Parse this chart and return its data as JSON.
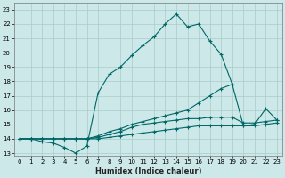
{
  "xlabel": "Humidex (Indice chaleur)",
  "bg_color": "#cce8e8",
  "grid_color": "#aacccc",
  "line_color": "#006666",
  "xlim": [
    -0.5,
    23.5
  ],
  "ylim": [
    12.8,
    23.5
  ],
  "xticks": [
    0,
    1,
    2,
    3,
    4,
    5,
    6,
    7,
    8,
    9,
    10,
    11,
    12,
    13,
    14,
    15,
    16,
    17,
    18,
    19,
    20,
    21,
    22,
    23
  ],
  "yticks": [
    13,
    14,
    15,
    16,
    17,
    18,
    19,
    20,
    21,
    22,
    23
  ],
  "s0x": [
    0,
    1,
    2,
    3,
    4,
    5,
    6,
    7,
    8,
    9,
    10,
    11,
    12,
    13,
    14,
    15,
    16,
    17,
    18,
    19
  ],
  "s0y": [
    14.0,
    14.0,
    13.8,
    13.7,
    13.4,
    13.0,
    13.5,
    17.2,
    18.5,
    19.0,
    19.8,
    20.5,
    21.1,
    22.0,
    22.7,
    21.8,
    22.0,
    20.8,
    19.9,
    17.8
  ],
  "s1x": [
    0,
    1,
    2,
    3,
    4,
    5,
    6,
    7,
    8,
    9,
    10,
    11,
    12,
    13,
    14,
    15,
    16,
    17,
    18,
    19,
    20,
    21,
    22,
    23
  ],
  "s1y": [
    14.0,
    14.0,
    14.0,
    14.0,
    14.0,
    14.0,
    14.0,
    14.2,
    14.5,
    14.7,
    15.0,
    15.2,
    15.4,
    15.6,
    15.8,
    16.0,
    16.5,
    17.0,
    17.5,
    17.8,
    14.9,
    15.0,
    16.1,
    15.3
  ],
  "s2x": [
    0,
    1,
    2,
    3,
    4,
    5,
    6,
    7,
    8,
    9,
    10,
    11,
    12,
    13,
    14,
    15,
    16,
    17,
    18,
    19,
    20,
    21,
    22,
    23
  ],
  "s2y": [
    14.0,
    14.0,
    14.0,
    14.0,
    14.0,
    14.0,
    14.0,
    14.1,
    14.3,
    14.5,
    14.8,
    15.0,
    15.1,
    15.2,
    15.3,
    15.4,
    15.4,
    15.5,
    15.5,
    15.5,
    15.1,
    15.1,
    15.2,
    15.3
  ],
  "s3x": [
    0,
    1,
    2,
    3,
    4,
    5,
    6,
    7,
    8,
    9,
    10,
    11,
    12,
    13,
    14,
    15,
    16,
    17,
    18,
    19,
    20,
    21,
    22,
    23
  ],
  "s3y": [
    14.0,
    14.0,
    14.0,
    14.0,
    14.0,
    14.0,
    14.0,
    14.0,
    14.1,
    14.2,
    14.3,
    14.4,
    14.5,
    14.6,
    14.7,
    14.8,
    14.9,
    14.9,
    14.9,
    14.9,
    14.9,
    14.9,
    15.0,
    15.1
  ]
}
